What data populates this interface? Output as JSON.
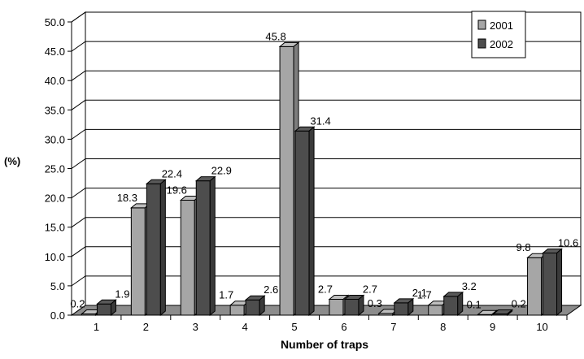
{
  "chart_data": {
    "type": "bar",
    "categories": [
      "1",
      "2",
      "3",
      "4",
      "5",
      "6",
      "7",
      "8",
      "9",
      "10"
    ],
    "series": [
      {
        "name": "2001",
        "values": [
          0.2,
          18.3,
          19.6,
          1.7,
          45.8,
          2.7,
          0.3,
          1.7,
          0.1,
          9.8
        ],
        "color": "#a6a6a6"
      },
      {
        "name": "2002",
        "values": [
          1.9,
          22.4,
          22.9,
          2.6,
          31.4,
          2.7,
          2.1,
          3.2,
          0.2,
          10.6
        ],
        "color": "#4d4d4d"
      }
    ],
    "data_labels": {
      "2001": [
        "0.2",
        "18.3",
        "19.6",
        "1.7",
        "45.8",
        "2.7",
        "0.3",
        "1.7",
        "0.1",
        "9.8"
      ],
      "2002": [
        "1.9",
        "22.4",
        "22.9",
        "2.6",
        "31.4",
        "2.7",
        "2.1",
        "3.2",
        "0.2",
        "10.6"
      ]
    },
    "ylim": [
      0,
      50
    ],
    "yticks": [
      "0.0",
      "5.0",
      "10.0",
      "15.0",
      "20.0",
      "25.0",
      "30.0",
      "35.0",
      "40.0",
      "45.0",
      "50.0"
    ],
    "ylabel": "(%)",
    "xlabel": "Number of traps",
    "grid": true,
    "legend_position": "top-right",
    "style": "3d-columns"
  }
}
